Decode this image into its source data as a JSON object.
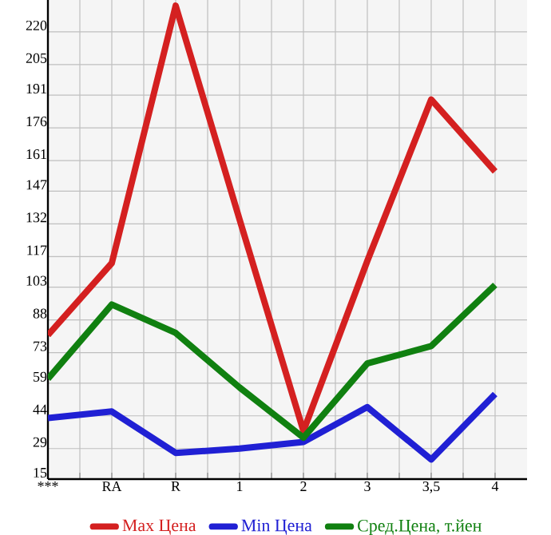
{
  "chart_data": {
    "type": "line",
    "categories": [
      "***",
      "RA",
      "R",
      "1",
      "2",
      "3",
      "3,5",
      "4"
    ],
    "series": [
      {
        "name": "Max Цена",
        "color": "#d42020",
        "values": [
          81,
          114,
          232,
          134,
          37,
          115,
          189,
          156
        ]
      },
      {
        "name": "Min Цена",
        "color": "#2020d4",
        "values": [
          43,
          46,
          27,
          29,
          32,
          48,
          24,
          54
        ]
      },
      {
        "name": "Сред.Цена, т.йен",
        "color": "#108010",
        "values": [
          61,
          95,
          82,
          57,
          34,
          68,
          76,
          104
        ]
      }
    ],
    "ylim": [
      15,
      234.6
    ],
    "yticks": [
      15,
      29,
      44,
      59,
      73,
      88,
      103,
      117,
      132,
      147,
      161,
      176,
      191,
      205,
      220
    ],
    "grid": true,
    "legend": "bottom",
    "marker": "none",
    "line_style": "solid"
  }
}
